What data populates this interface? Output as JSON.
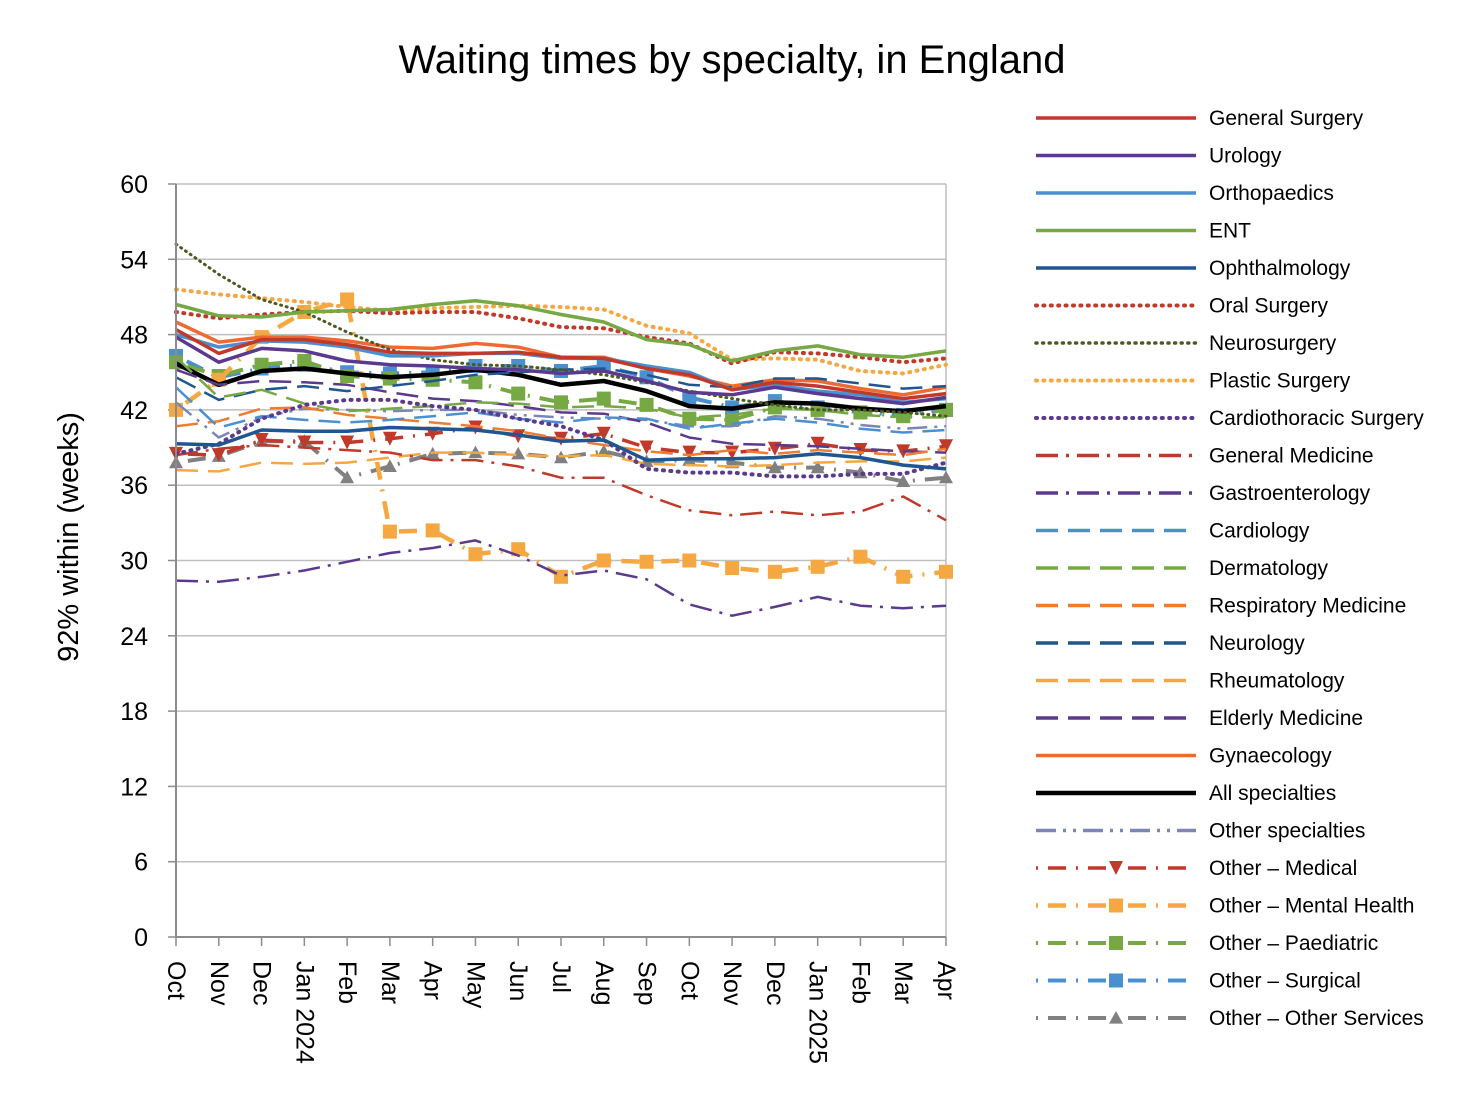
{
  "chart_data": {
    "type": "line",
    "title": "Waiting times by specialty, in England",
    "xlabel": "",
    "ylabel": "92% within (weeks)",
    "ylim": [
      0,
      60
    ],
    "yticks": [
      "0",
      "6",
      "12",
      "18",
      "24",
      "30",
      "36",
      "42",
      "48",
      "54",
      "60"
    ],
    "grid": "horizontal",
    "legend_position": "right",
    "categories": [
      "Oct",
      "Nov",
      "Dec",
      "Jan 2024",
      "Feb",
      "Mar",
      "Apr",
      "May",
      "Jun",
      "Jul",
      "Aug",
      "Sep",
      "Oct",
      "Nov",
      "Dec",
      "Jan 2025",
      "Feb",
      "Mar",
      "Apr"
    ],
    "series": [
      {
        "name": "General Surgery",
        "color": "#C0392B",
        "style": "solid",
        "width": 3.5,
        "values": [
          48.4,
          46.5,
          47.6,
          47.6,
          47.2,
          46.6,
          46.5,
          46.5,
          46.6,
          46.2,
          46.1,
          45.3,
          44.8,
          43.6,
          44.2,
          43.9,
          43.4,
          42.9,
          43.3
        ]
      },
      {
        "name": "Urology",
        "color": "#5B3A8E",
        "style": "solid",
        "width": 3.5,
        "values": [
          47.8,
          45.8,
          46.9,
          46.7,
          45.9,
          45.6,
          45.5,
          45.3,
          45.2,
          44.9,
          45.1,
          44.3,
          43.4,
          43.2,
          43.8,
          43.3,
          42.9,
          42.5,
          43.0
        ]
      },
      {
        "name": "Orthopaedics",
        "color": "#4A90D0",
        "style": "solid",
        "width": 3.5,
        "values": [
          48.0,
          47.0,
          47.5,
          47.4,
          47.0,
          46.3,
          46.3,
          46.5,
          46.5,
          46.1,
          46.1,
          45.5,
          45.0,
          43.6,
          44.0,
          43.5,
          43.2,
          42.6,
          42.9
        ]
      },
      {
        "name": "ENT",
        "color": "#76A844",
        "style": "solid",
        "width": 3.5,
        "values": [
          50.4,
          49.5,
          49.4,
          49.8,
          49.9,
          50.0,
          50.4,
          50.7,
          50.3,
          49.6,
          49.0,
          47.6,
          47.2,
          45.9,
          46.7,
          47.1,
          46.4,
          46.2,
          46.7
        ]
      },
      {
        "name": "Ophthalmology",
        "color": "#1F5591",
        "style": "solid",
        "width": 3.5,
        "values": [
          39.3,
          39.2,
          40.4,
          40.3,
          40.3,
          40.6,
          40.5,
          40.4,
          40.0,
          39.5,
          39.6,
          38.0,
          38.1,
          38.1,
          38.2,
          38.5,
          38.2,
          37.6,
          37.3
        ]
      },
      {
        "name": "Oral Surgery",
        "color": "#C0392B",
        "style": "dot",
        "width": 4,
        "values": [
          49.8,
          49.3,
          49.6,
          49.8,
          49.9,
          49.7,
          49.8,
          49.8,
          49.3,
          48.6,
          48.5,
          47.8,
          47.3,
          45.7,
          46.6,
          46.5,
          46.2,
          45.8,
          46.1
        ]
      },
      {
        "name": "Neurosurgery",
        "color": "#4D5A1F",
        "style": "dot",
        "width": 3,
        "values": [
          55.2,
          52.8,
          50.8,
          49.8,
          48.2,
          46.8,
          46.0,
          45.6,
          45.5,
          45.2,
          44.8,
          44.2,
          43.5,
          42.9,
          42.4,
          42.0,
          42.0,
          41.8,
          41.5
        ]
      },
      {
        "name": "Plastic Surgery",
        "color": "#F5A742",
        "style": "dot",
        "width": 4,
        "values": [
          51.6,
          51.2,
          50.9,
          50.6,
          50.2,
          49.9,
          50.1,
          50.2,
          50.3,
          50.2,
          50.0,
          48.7,
          48.1,
          46.0,
          46.1,
          46.0,
          45.1,
          44.9,
          45.6
        ]
      },
      {
        "name": "Cardiothoracic Surgery",
        "color": "#5B3A8E",
        "style": "dot",
        "width": 4,
        "values": [
          38.5,
          39.3,
          41.3,
          42.4,
          42.8,
          42.8,
          42.3,
          42.0,
          41.3,
          40.7,
          39.6,
          37.3,
          37.0,
          37.0,
          36.7,
          36.7,
          36.9,
          36.9,
          37.8
        ]
      },
      {
        "name": "General Medicine",
        "color": "#C0392B",
        "style": "dashdot",
        "width": 2.5,
        "values": [
          38.4,
          38.9,
          39.2,
          39.0,
          38.8,
          38.6,
          38.0,
          38.0,
          37.5,
          36.6,
          36.6,
          35.2,
          34.0,
          33.6,
          33.9,
          33.6,
          33.9,
          35.1,
          33.2
        ]
      },
      {
        "name": "Gastroenterology",
        "color": "#5B3A8E",
        "style": "dashdot",
        "width": 2.5,
        "values": [
          28.4,
          28.3,
          28.7,
          29.2,
          29.9,
          30.6,
          31.0,
          31.6,
          30.4,
          28.8,
          29.2,
          28.5,
          26.5,
          25.6,
          26.3,
          27.1,
          26.4,
          26.2,
          26.4
        ]
      },
      {
        "name": "Cardiology",
        "color": "#4A90D0",
        "style": "dash",
        "width": 2.5,
        "values": [
          43.8,
          40.6,
          41.5,
          41.2,
          41.0,
          41.2,
          41.5,
          41.8,
          41.3,
          41.0,
          41.4,
          41.3,
          40.5,
          40.9,
          41.3,
          41.0,
          40.5,
          40.2,
          40.4
        ]
      },
      {
        "name": "Dermatology",
        "color": "#76A844",
        "style": "dash",
        "width": 2.5,
        "values": [
          46.2,
          43.0,
          43.6,
          42.5,
          41.9,
          42.1,
          42.3,
          42.6,
          42.5,
          42.2,
          42.3,
          42.1,
          41.4,
          41.6,
          42.1,
          42.0,
          41.6,
          41.4,
          41.4
        ]
      },
      {
        "name": "Respiratory Medicine",
        "color": "#ED7D31",
        "style": "dash",
        "width": 2.5,
        "values": [
          40.7,
          41.1,
          42.1,
          42.2,
          41.6,
          41.3,
          41.0,
          40.7,
          40.3,
          39.7,
          39.2,
          38.7,
          38.4,
          38.8,
          38.5,
          38.8,
          38.6,
          38.4,
          38.9
        ]
      },
      {
        "name": "Neurology",
        "color": "#1F5591",
        "style": "dash",
        "width": 2.5,
        "values": [
          44.6,
          42.8,
          43.6,
          43.9,
          43.5,
          43.9,
          44.3,
          44.8,
          45.0,
          45.2,
          45.3,
          44.8,
          44.0,
          43.8,
          44.5,
          44.5,
          44.1,
          43.7,
          43.9
        ]
      },
      {
        "name": "Rheumatology",
        "color": "#F5A742",
        "style": "dash",
        "width": 2.5,
        "values": [
          37.2,
          37.1,
          37.8,
          37.7,
          37.8,
          38.2,
          38.6,
          38.6,
          38.4,
          38.3,
          38.4,
          37.7,
          37.6,
          37.5,
          37.6,
          37.8,
          37.9,
          37.9,
          38.2
        ]
      },
      {
        "name": "Elderly Medicine",
        "color": "#5B3A8E",
        "style": "dash",
        "width": 2.5,
        "values": [
          45.2,
          44.0,
          44.3,
          44.2,
          44.0,
          43.4,
          42.9,
          42.7,
          42.3,
          41.8,
          41.7,
          41.0,
          39.8,
          39.3,
          39.2,
          39.1,
          38.9,
          38.7,
          38.6
        ]
      },
      {
        "name": "Gynaecology",
        "color": "#ED6A33",
        "style": "solid",
        "width": 3.5,
        "values": [
          49.0,
          47.4,
          47.8,
          47.8,
          47.5,
          47.0,
          46.9,
          47.3,
          47.0,
          46.2,
          46.2,
          45.3,
          44.7,
          43.9,
          44.4,
          44.3,
          43.7,
          43.2,
          43.8
        ]
      },
      {
        "name": "All specialties",
        "color": "#000000",
        "style": "solid",
        "width": 4.5,
        "values": [
          45.7,
          44.0,
          45.1,
          45.3,
          44.9,
          44.6,
          44.8,
          45.2,
          44.8,
          44.0,
          44.3,
          43.5,
          42.3,
          42.1,
          42.6,
          42.5,
          42.1,
          41.9,
          42.3
        ]
      },
      {
        "name": "Other specialties",
        "color": "#7A86B8",
        "style": "dashdotdot",
        "width": 2.5,
        "values": [
          42.6,
          39.8,
          41.4,
          42.1,
          42.0,
          41.9,
          42.0,
          42.0,
          41.6,
          41.4,
          41.3,
          41.2,
          40.7,
          40.7,
          41.5,
          41.3,
          40.8,
          40.5,
          40.7
        ]
      },
      {
        "name": "Other – Medical",
        "color": "#C0392B",
        "style": "markers-dashdot",
        "width": 3.5,
        "marker": "triangle-down",
        "values": [
          38.5,
          38.4,
          39.6,
          39.4,
          39.4,
          39.7,
          40.1,
          40.6,
          39.9,
          39.7,
          40.1,
          39.0,
          38.6,
          38.6,
          38.9,
          39.3,
          38.8,
          38.7,
          39.1
        ]
      },
      {
        "name": "Other – Mental Health",
        "color": "#F5A742",
        "style": "markers-dashdot",
        "width": 4.5,
        "marker": "square",
        "values": [
          42.0,
          44.4,
          47.8,
          49.8,
          50.8,
          32.3,
          32.4,
          30.5,
          30.9,
          28.7,
          30.0,
          29.9,
          30.0,
          29.4,
          29.1,
          29.5,
          30.3,
          28.7,
          29.1
        ]
      },
      {
        "name": "Other – Paediatric",
        "color": "#76A844",
        "style": "markers-dashdot",
        "width": 4,
        "marker": "square",
        "values": [
          45.8,
          44.7,
          45.6,
          45.9,
          44.7,
          44.5,
          44.4,
          44.2,
          43.3,
          42.6,
          42.9,
          42.4,
          41.3,
          41.2,
          42.2,
          42.0,
          41.8,
          41.5,
          42.0
        ]
      },
      {
        "name": "Other – Surgical",
        "color": "#4A90D0",
        "style": "markers-dashdot",
        "width": 4,
        "marker": "square",
        "values": [
          46.3,
          44.6,
          45.3,
          45.6,
          45.0,
          44.9,
          45.0,
          45.5,
          45.5,
          45.1,
          45.5,
          44.6,
          43.0,
          42.2,
          42.7,
          42.2,
          41.8,
          41.6,
          42.0
        ]
      },
      {
        "name": "Other – Other Services",
        "color": "#808080",
        "style": "markers-dashdot",
        "width": 4,
        "marker": "triangle-up",
        "values": [
          37.8,
          38.3,
          39.5,
          39.5,
          36.6,
          37.5,
          38.5,
          38.6,
          38.5,
          38.2,
          38.7,
          37.9,
          38.0,
          37.8,
          37.4,
          37.4,
          37.0,
          36.3,
          36.6
        ]
      }
    ]
  }
}
